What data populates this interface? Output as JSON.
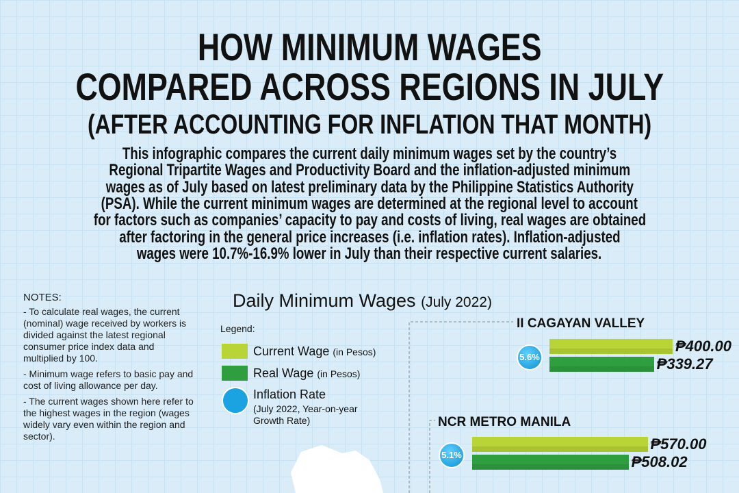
{
  "header": {
    "title_lines": [
      "HOW MINIMUM WAGES",
      "COMPARED ACROSS REGIONS IN JULY",
      "(AFTER ACCOUNTING FOR INFLATION THAT MONTH)"
    ],
    "description_lines": [
      "This infographic compares the current daily minimum wages set by the country’s",
      "Regional Tripartite Wages and Productivity Board and the inflation-adjusted minimum",
      "wages as of July based on latest preliminary data by the Philippine Statistics Authority",
      "(PSA). While the current minimum wages are determined at the regional level to account",
      "for factors such as companies’ capacity to pay and costs of living, real wages are obtained",
      "after factoring in the general price increases (i.e. inflation rates). Inflation-adjusted",
      "wages were 10.7%-16.9% lower in July than their respective current salaries."
    ]
  },
  "notes": {
    "heading": "NOTES:",
    "items": [
      "- To calculate real wages, the current (nominal) wage received by workers is divided against the latest regional consumer price index data and multiplied by 100.",
      "- Minimum wage refers to basic pay and cost of living allowance per day.",
      "- The current wages shown here refer to the highest wages in the region (wages widely vary even within the region and sector)."
    ]
  },
  "chart": {
    "title": "Daily Minimum Wages",
    "subtitle": "(July 2022)",
    "legend": {
      "heading": "Legend:",
      "items": [
        {
          "name": "Current Wage",
          "unit": "(in Pesos)",
          "color": "#b8d436"
        },
        {
          "name": "Real Wage",
          "unit": "(in Pesos)",
          "color": "#2f9e3f"
        },
        {
          "name": "Inflation Rate",
          "unit": "(July 2022, Year-on-year Growth Rate)",
          "color": "#1aa3e0"
        }
      ]
    },
    "regions": [
      {
        "name": "II CAGAYAN VALLEY",
        "inflation": {
          "value": 5.6,
          "label": "5.6%"
        },
        "current_wage": {
          "value": 400.0,
          "label": "₱400.00"
        },
        "real_wage": {
          "value": 339.27,
          "label": "₱339.27"
        }
      },
      {
        "name": "NCR METRO MANILA",
        "inflation": {
          "value": 5.1,
          "label": "5.1%"
        },
        "current_wage": {
          "value": 570.0,
          "label": "₱570.00"
        },
        "real_wage": {
          "value": 508.02,
          "label": "₱508.02"
        }
      }
    ]
  }
}
